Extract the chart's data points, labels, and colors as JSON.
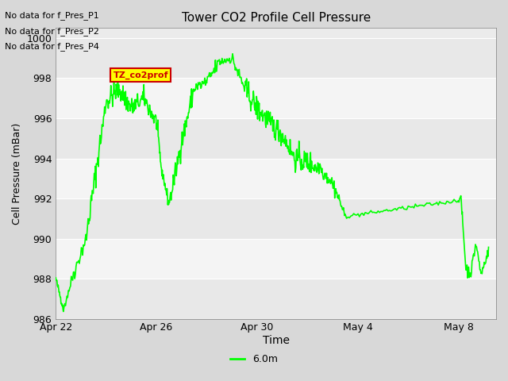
{
  "title": "Tower CO2 Profile Cell Pressure",
  "xlabel": "Time",
  "ylabel": "Cell Pressure (mBar)",
  "ylim": [
    986,
    1000.5
  ],
  "yticks": [
    986,
    988,
    990,
    992,
    994,
    996,
    998,
    1000
  ],
  "xtick_labels": [
    "Apr 22",
    "Apr 26",
    "Apr 30",
    "May 4",
    "May 8"
  ],
  "legend_label": "6.0m",
  "line_color": "#00ff00",
  "annotation_texts": [
    "No data for f_Pres_P1",
    "No data for f_Pres_P2",
    "No data for f_Pres_P4"
  ],
  "annotation_box_label": "TZ_co2prof",
  "annotation_box_color": "#ffff00",
  "annotation_box_border": "#cc0000",
  "annotation_text_color": "#cc0000"
}
